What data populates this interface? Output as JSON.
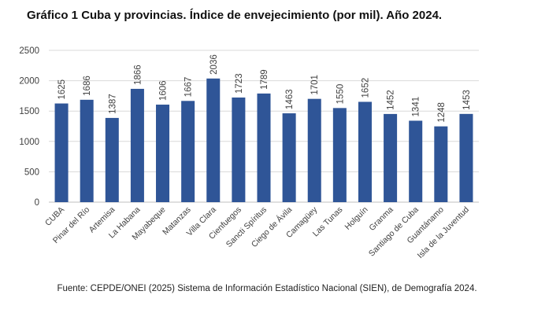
{
  "title": "Gráfico 1 Cuba y provincias. Índice de envejecimiento (por mil). Año 2024.",
  "source": "Fuente: CEPDE/ONEI (2025) Sistema de Información Estadístico Nacional (SIEN), de Demografía 2024.",
  "colors": {
    "bar": "#2F5597",
    "gridline": "#D9D9D9",
    "axis_text": "#404040"
  },
  "chart_data": {
    "type": "bar",
    "title": "Gráfico 1 Cuba y provincias. Índice de envejecimiento (por mil). Año 2024.",
    "xlabel": "",
    "ylabel": "",
    "ylim": [
      0,
      2500
    ],
    "yticks": [
      0,
      500,
      1000,
      1500,
      2000,
      2500
    ],
    "grid": true,
    "legend": "none",
    "categories": [
      "CUBA",
      "Pinar del Río",
      "Artemisa",
      "La Habana",
      "Mayabeque",
      "Matanzas",
      "Villa Clara",
      "Cienfuegos",
      "Sancti Spíritus",
      "Ciego de Ávila",
      "Camagüey",
      "Las Tunas",
      "Holguín",
      "Granma",
      "Santiago de Cuba",
      "Guantánamo",
      "Isla de la Juventud"
    ],
    "values": [
      1625,
      1686,
      1387,
      1866,
      1606,
      1667,
      2036,
      1723,
      1789,
      1463,
      1701,
      1550,
      1652,
      1452,
      1341,
      1248,
      1453
    ]
  }
}
